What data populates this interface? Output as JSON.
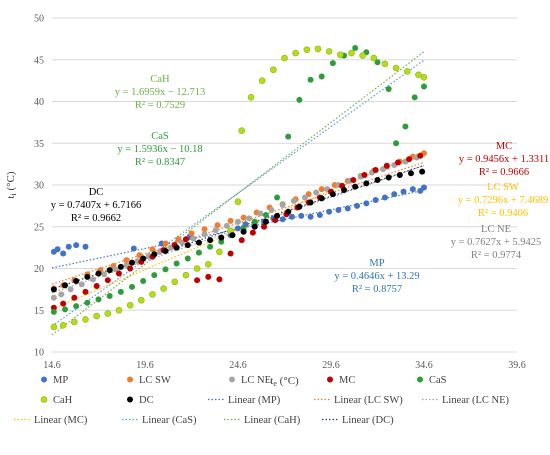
{
  "chart_data": {
    "type": "scatter",
    "title": "",
    "xlabel": "tₑ (°C)",
    "ylabel": "tᵢ (°C)",
    "xlabel_main": "t",
    "xlabel_sub": "e",
    "xlabel_unit": " (°C)",
    "ylabel_main": "t",
    "ylabel_sub": "i",
    "ylabel_unit": " (°C)",
    "xlim": [
      14.6,
      39.6
    ],
    "ylim": [
      10,
      50
    ],
    "x_ticks": [
      14.6,
      19.6,
      24.6,
      29.6,
      34.6,
      39.6
    ],
    "x_tick_labels": [
      "14.6",
      "19.6",
      "24.6",
      "29.6",
      "34.6",
      "39.6"
    ],
    "y_ticks": [
      10,
      15,
      20,
      25,
      30,
      35,
      40,
      45,
      50
    ],
    "y_tick_labels": [
      "10",
      "15",
      "20",
      "25",
      "30",
      "35",
      "40",
      "45",
      "50"
    ],
    "grid": "horizontal",
    "legend_position": "bottom",
    "series": [
      {
        "name": "MP",
        "color": "#4472c4",
        "marker": "circle",
        "trend_label": "Linear (MP)",
        "points": [
          [
            14.7,
            22.0
          ],
          [
            14.9,
            22.3
          ],
          [
            15.2,
            21.8
          ],
          [
            15.5,
            22.6
          ],
          [
            15.9,
            22.8
          ],
          [
            16.4,
            22.6
          ],
          [
            19.0,
            22.4
          ],
          [
            20.5,
            23.0
          ],
          [
            22.0,
            23.8
          ],
          [
            24.2,
            24.0
          ],
          [
            24.6,
            24.8
          ],
          [
            25.0,
            25.3
          ],
          [
            25.5,
            25.5
          ],
          [
            26.0,
            25.6
          ],
          [
            26.5,
            26.0
          ],
          [
            27.0,
            25.9
          ],
          [
            27.5,
            26.2
          ],
          [
            28.0,
            26.3
          ],
          [
            28.5,
            26.2
          ],
          [
            29.0,
            26.4
          ],
          [
            29.5,
            26.8
          ],
          [
            30.0,
            27.0
          ],
          [
            30.5,
            27.2
          ],
          [
            31.0,
            27.5
          ],
          [
            31.5,
            27.8
          ],
          [
            32.0,
            28.2
          ],
          [
            32.5,
            28.5
          ],
          [
            33.0,
            28.9
          ],
          [
            33.5,
            29.2
          ],
          [
            34.0,
            29.5
          ],
          [
            34.4,
            29.3
          ],
          [
            34.6,
            29.7
          ]
        ],
        "trend": {
          "slope": 0.4646,
          "intercept": 13.29,
          "equation": "y = 0.4646x + 13.29",
          "r2": "R² = 0.8757",
          "label_color": "#2e75b6"
        }
      },
      {
        "name": "LC SW",
        "color": "#ed7d31",
        "marker": "circle",
        "trend_label": "Linear (LC SW)",
        "points": [
          [
            14.7,
            17.6
          ],
          [
            15.2,
            18.0
          ],
          [
            15.8,
            18.6
          ],
          [
            16.5,
            19.3
          ],
          [
            17.2,
            19.8
          ],
          [
            17.9,
            20.3
          ],
          [
            18.6,
            21.0
          ],
          [
            19.3,
            21.6
          ],
          [
            20.0,
            22.3
          ],
          [
            20.7,
            23.0
          ],
          [
            21.4,
            23.5
          ],
          [
            22.1,
            24.2
          ],
          [
            22.8,
            24.7
          ],
          [
            23.5,
            25.2
          ],
          [
            24.2,
            25.7
          ],
          [
            24.9,
            26.1
          ],
          [
            25.6,
            26.7
          ],
          [
            26.3,
            27.3
          ],
          [
            27.0,
            27.7
          ],
          [
            27.7,
            28.3
          ],
          [
            28.4,
            28.9
          ],
          [
            29.1,
            29.5
          ],
          [
            29.8,
            30.0
          ],
          [
            30.5,
            30.5
          ],
          [
            31.2,
            31.1
          ],
          [
            31.9,
            31.7
          ],
          [
            32.6,
            32.2
          ],
          [
            33.3,
            32.8
          ],
          [
            34.0,
            33.4
          ],
          [
            34.6,
            33.8
          ]
        ],
        "trend": {
          "slope": 0.7296,
          "intercept": 7.4689,
          "equation": "y = 0.7296x + 7.4689",
          "r2": "R² = 0.9406",
          "label_color": "#ffc000"
        }
      },
      {
        "name": "LC NE",
        "color": "#a5a5a5",
        "marker": "circle",
        "trend_label": "Linear (LC NE)",
        "points": [
          [
            14.7,
            16.5
          ],
          [
            15.1,
            16.9
          ],
          [
            15.6,
            17.5
          ],
          [
            16.2,
            18.1
          ],
          [
            16.8,
            18.7
          ],
          [
            17.4,
            19.3
          ],
          [
            18.0,
            19.9
          ],
          [
            18.6,
            20.4
          ],
          [
            19.2,
            20.9
          ],
          [
            19.8,
            21.5
          ],
          [
            20.4,
            22.0
          ],
          [
            21.0,
            22.5
          ],
          [
            21.6,
            23.1
          ],
          [
            22.2,
            23.6
          ],
          [
            22.8,
            24.1
          ],
          [
            23.4,
            24.6
          ],
          [
            24.0,
            25.1
          ],
          [
            24.6,
            25.6
          ],
          [
            25.2,
            26.0
          ],
          [
            25.8,
            26.6
          ],
          [
            26.4,
            27.0
          ],
          [
            27.0,
            27.6
          ],
          [
            27.6,
            28.1
          ],
          [
            28.2,
            28.5
          ],
          [
            28.8,
            29.1
          ],
          [
            29.4,
            29.5
          ],
          [
            30.0,
            30.0
          ],
          [
            30.6,
            30.5
          ],
          [
            31.2,
            31.0
          ],
          [
            31.8,
            31.5
          ],
          [
            32.4,
            31.9
          ],
          [
            33.0,
            32.4
          ],
          [
            33.6,
            32.8
          ],
          [
            34.2,
            33.3
          ]
        ],
        "trend": {
          "slope": 0.7627,
          "intercept": 5.9425,
          "equation": "y = 0.7627x + 5.9425",
          "r2": "R² = 0.9774",
          "label_color": "#7f7f7f"
        }
      },
      {
        "name": "MC",
        "color": "#c00000",
        "marker": "circle",
        "trend_label": "Linear (MC)",
        "points": [
          [
            14.7,
            15.3
          ],
          [
            15.2,
            15.8
          ],
          [
            15.8,
            16.5
          ],
          [
            16.4,
            17.2
          ],
          [
            17.0,
            17.9
          ],
          [
            17.6,
            18.6
          ],
          [
            18.2,
            19.4
          ],
          [
            18.8,
            20.0
          ],
          [
            19.4,
            20.8
          ],
          [
            20.0,
            21.4
          ],
          [
            20.6,
            22.2
          ],
          [
            21.2,
            22.8
          ],
          [
            21.8,
            23.5
          ],
          [
            22.4,
            18.6
          ],
          [
            23.0,
            19.0
          ],
          [
            23.6,
            18.7
          ],
          [
            24.2,
            21.8
          ],
          [
            24.8,
            23.4
          ],
          [
            25.4,
            24.3
          ],
          [
            26.0,
            25.0
          ],
          [
            26.6,
            25.8
          ],
          [
            27.2,
            26.5
          ],
          [
            27.8,
            27.3
          ],
          [
            28.4,
            27.9
          ],
          [
            29.0,
            28.5
          ],
          [
            29.6,
            29.2
          ],
          [
            30.2,
            29.9
          ],
          [
            30.8,
            30.6
          ],
          [
            31.4,
            31.2
          ],
          [
            32.0,
            31.8
          ],
          [
            32.6,
            32.3
          ],
          [
            33.2,
            32.7
          ],
          [
            33.8,
            33.1
          ],
          [
            34.4,
            33.5
          ]
        ],
        "trend": {
          "slope": 0.9456,
          "intercept": 1.3311,
          "equation": "y = 0.9456x + 1.3311",
          "r2": "R² = 0.9666",
          "label_color": "#c00000"
        }
      },
      {
        "name": "CaS",
        "color": "#2e9c3a",
        "marker": "circle",
        "trend_label": "Linear (CaS)",
        "points": [
          [
            14.7,
            14.8
          ],
          [
            15.3,
            15.1
          ],
          [
            15.9,
            15.5
          ],
          [
            16.5,
            15.9
          ],
          [
            17.1,
            16.3
          ],
          [
            17.7,
            16.7
          ],
          [
            18.3,
            17.2
          ],
          [
            18.9,
            17.8
          ],
          [
            19.5,
            18.5
          ],
          [
            20.1,
            19.2
          ],
          [
            20.7,
            19.9
          ],
          [
            21.3,
            20.6
          ],
          [
            21.9,
            21.2
          ],
          [
            22.5,
            21.9
          ],
          [
            23.1,
            22.6
          ],
          [
            23.7,
            23.2
          ],
          [
            24.3,
            24.0
          ],
          [
            24.9,
            24.8
          ],
          [
            25.5,
            25.6
          ],
          [
            26.1,
            26.4
          ],
          [
            26.7,
            28.5
          ],
          [
            27.3,
            35.8
          ],
          [
            27.9,
            40.2
          ],
          [
            28.5,
            42.6
          ],
          [
            29.1,
            43.0
          ],
          [
            29.7,
            44.6
          ],
          [
            30.3,
            45.5
          ],
          [
            30.9,
            46.4
          ],
          [
            31.5,
            45.9
          ],
          [
            32.1,
            44.7
          ],
          [
            32.7,
            41.5
          ],
          [
            33.1,
            35.0
          ],
          [
            33.6,
            37.0
          ],
          [
            34.1,
            40.5
          ],
          [
            34.6,
            41.8
          ]
        ],
        "trend": {
          "slope": 1.5936,
          "intercept": -10.18,
          "equation": "y = 1.5936x − 10.18",
          "r2": "R² = 0.8347",
          "label_color": "#2e9c3a"
        }
      },
      {
        "name": "CaH",
        "color": "#b4dc1e",
        "marker": "circle-outline",
        "trend_label": "Linear (CaH)",
        "points": [
          [
            14.7,
            13.0
          ],
          [
            15.2,
            13.2
          ],
          [
            15.8,
            13.6
          ],
          [
            16.4,
            13.9
          ],
          [
            17.0,
            14.3
          ],
          [
            17.6,
            14.6
          ],
          [
            18.2,
            15.0
          ],
          [
            18.8,
            15.6
          ],
          [
            19.4,
            16.2
          ],
          [
            20.0,
            16.9
          ],
          [
            20.6,
            17.6
          ],
          [
            21.2,
            18.4
          ],
          [
            21.8,
            19.2
          ],
          [
            22.4,
            20.0
          ],
          [
            23.0,
            20.5
          ],
          [
            23.6,
            22.0
          ],
          [
            24.2,
            24.5
          ],
          [
            24.6,
            28.0
          ],
          [
            24.8,
            36.5
          ],
          [
            25.3,
            40.5
          ],
          [
            25.9,
            42.5
          ],
          [
            26.5,
            43.8
          ],
          [
            27.1,
            45.2
          ],
          [
            27.7,
            45.8
          ],
          [
            28.3,
            46.2
          ],
          [
            28.9,
            46.3
          ],
          [
            29.5,
            46.0
          ],
          [
            30.1,
            45.6
          ],
          [
            30.7,
            45.8
          ],
          [
            31.3,
            45.5
          ],
          [
            31.9,
            45.2
          ],
          [
            32.5,
            44.5
          ],
          [
            33.1,
            44.0
          ],
          [
            33.7,
            43.6
          ],
          [
            34.3,
            43.2
          ],
          [
            34.6,
            42.9
          ]
        ],
        "trend": {
          "slope": 1.6959,
          "intercept": -12.713,
          "equation": "y = 1.6959x − 12.713",
          "r2": "R² = 0.7529",
          "label_color": "#70ad47"
        }
      },
      {
        "name": "DC",
        "color": "#000000",
        "marker": "circle",
        "trend_label": "Linear (DC)",
        "points": [
          [
            14.7,
            17.5
          ],
          [
            15.3,
            18.0
          ],
          [
            15.9,
            18.5
          ],
          [
            16.5,
            19.0
          ],
          [
            17.1,
            19.4
          ],
          [
            17.7,
            19.8
          ],
          [
            18.3,
            20.2
          ],
          [
            18.9,
            20.7
          ],
          [
            19.5,
            21.2
          ],
          [
            20.1,
            21.7
          ],
          [
            20.7,
            22.1
          ],
          [
            21.3,
            22.5
          ],
          [
            21.9,
            22.8
          ],
          [
            22.5,
            23.1
          ],
          [
            23.1,
            23.4
          ],
          [
            23.7,
            23.7
          ],
          [
            24.3,
            24.0
          ],
          [
            24.9,
            24.4
          ],
          [
            25.5,
            25.0
          ],
          [
            26.1,
            25.6
          ],
          [
            26.7,
            26.3
          ],
          [
            27.3,
            26.8
          ],
          [
            27.9,
            27.4
          ],
          [
            28.5,
            27.9
          ],
          [
            29.1,
            28.4
          ],
          [
            29.7,
            28.9
          ],
          [
            30.3,
            29.4
          ],
          [
            30.9,
            29.8
          ],
          [
            31.5,
            30.2
          ],
          [
            32.1,
            30.6
          ],
          [
            32.7,
            30.9
          ],
          [
            33.3,
            31.2
          ],
          [
            33.9,
            31.4
          ],
          [
            34.5,
            31.6
          ]
        ],
        "trend": {
          "slope": 0.7407,
          "intercept": 6.7166,
          "equation": "y = 0.7407x + 6.7166",
          "r2": "R² = 0.9662",
          "label_color": "#000000"
        }
      }
    ]
  }
}
